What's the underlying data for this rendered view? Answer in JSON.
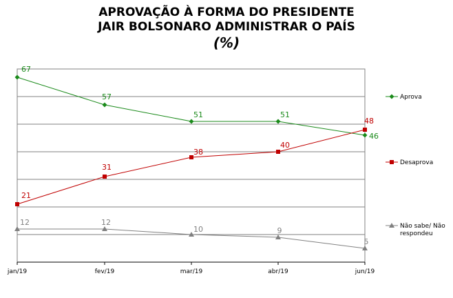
{
  "chart_data": {
    "type": "line",
    "title_lines": [
      "APROVAÇÃO À FORMA DO PRESIDENTE",
      "JAIR BOLSONARO ADMINISTRAR O PAÍS",
      "(%)"
    ],
    "categories": [
      "jan/19",
      "fev/19",
      "mar/19",
      "abr/19",
      "jun/19"
    ],
    "ylim": [
      0,
      70
    ],
    "grid": true,
    "legend_position": "right",
    "series": [
      {
        "name": "Aprova",
        "values": [
          67,
          57,
          51,
          51,
          46
        ],
        "color": "#1a8a1a",
        "marker": "diamond"
      },
      {
        "name": "Desaprova",
        "values": [
          21,
          31,
          38,
          40,
          48
        ],
        "color": "#c00000",
        "marker": "square"
      },
      {
        "name": "Não sabe/ Não respondeu",
        "legend_lines": [
          "Não sabe/ Não",
          "respondeu"
        ],
        "values": [
          12,
          12,
          10,
          9,
          5
        ],
        "color": "#808080",
        "marker": "triangle"
      }
    ]
  }
}
